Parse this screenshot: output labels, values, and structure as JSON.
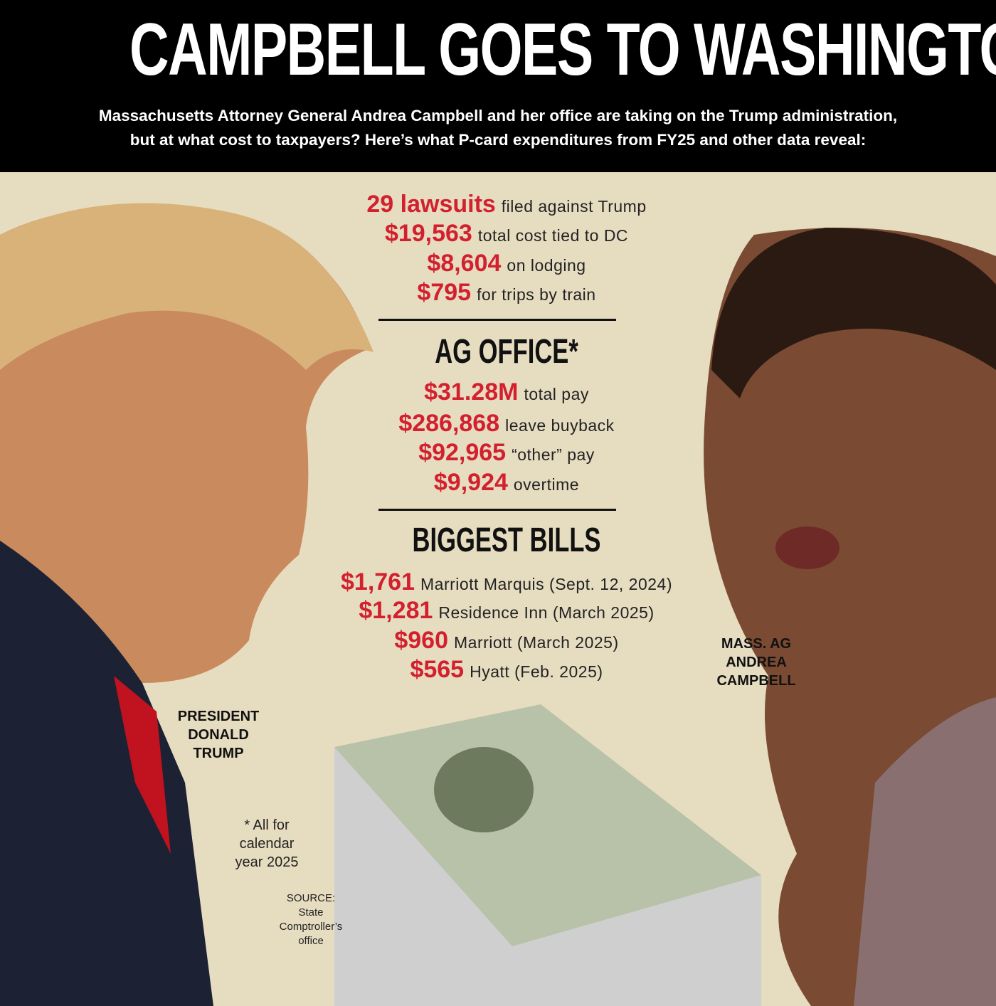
{
  "header": {
    "title": "CAMPBELL GOES TO WASHINGTON",
    "subtitle": [
      "Massachusetts Attorney General Andrea Campbell and her office are taking on the Trump administration,",
      "but at what cost to taxpayers? Here’s what P-card expenditures from FY25 and other data reveal:"
    ]
  },
  "sections": [
    {
      "items": [
        {
          "amount": "29 lawsuits",
          "text": "filed against Trump"
        },
        {
          "amount": "$19,563",
          "text": "total cost tied to DC"
        },
        {
          "amount": "$8,604",
          "text": "on lodging"
        },
        {
          "amount": "$795",
          "text": "for trips by train"
        }
      ]
    },
    {
      "heading": "AG OFFICE*",
      "items": [
        {
          "amount": "$31.28M",
          "text": "total pay"
        },
        {
          "amount": "$286,868",
          "text": "leave buyback"
        },
        {
          "amount": "$92,965",
          "text": "“other” pay"
        },
        {
          "amount": "$9,924",
          "text": "overtime"
        }
      ]
    },
    {
      "heading": "BIGGEST BILLS",
      "items": [
        {
          "amount": "$1,761",
          "text": "Marriott Marquis (Sept. 12, 2024)"
        },
        {
          "amount": "$1,281",
          "text": "Residence Inn (March 2025)"
        },
        {
          "amount": "$960",
          "text": "Marriott (March 2025)"
        },
        {
          "amount": "$565",
          "text": "Hyatt (Feb. 2025)"
        }
      ]
    }
  ],
  "labels": {
    "trump": [
      "PRESIDENT",
      "DONALD",
      "TRUMP"
    ],
    "campbell": [
      "MASS. AG",
      "ANDREA",
      "CAMPBELL"
    ],
    "footnote": [
      "* All for",
      "calendar",
      "year 2025"
    ],
    "source": [
      "SOURCE:",
      "State",
      "Comptroller’s",
      "office"
    ]
  }
}
